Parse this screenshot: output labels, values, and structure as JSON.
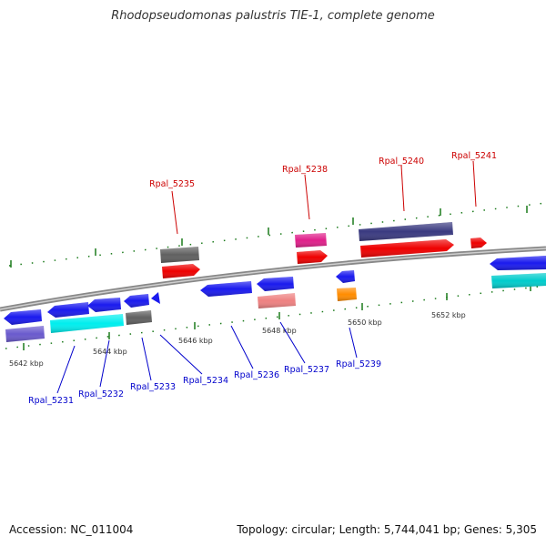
{
  "title": "Rhodopseudomonas palustris TIE-1, complete genome",
  "accession": "Accession: NC_011004",
  "topology": "Topology: circular; Length: 5,744,041 bp; Genes: 5,305",
  "kbp_labels": [
    "5642 kbp",
    "5644 kbp",
    "5646 kbp",
    "5648 kbp",
    "5650 kbp",
    "5652 kbp"
  ],
  "upper_labels": [
    "Rpal_5235",
    "Rpal_5238",
    "Rpal_5240",
    "Rpal_5241"
  ],
  "lower_labels": [
    "Rpal_5231",
    "Rpal_5232",
    "Rpal_5233",
    "Rpal_5234",
    "Rpal_5236",
    "Rpal_5237",
    "Rpal_5239"
  ],
  "colors": {
    "upper_label": "#cc0000",
    "lower_label": "#0000cc",
    "tick": "#1a7a1a",
    "backbone": "#888888"
  }
}
